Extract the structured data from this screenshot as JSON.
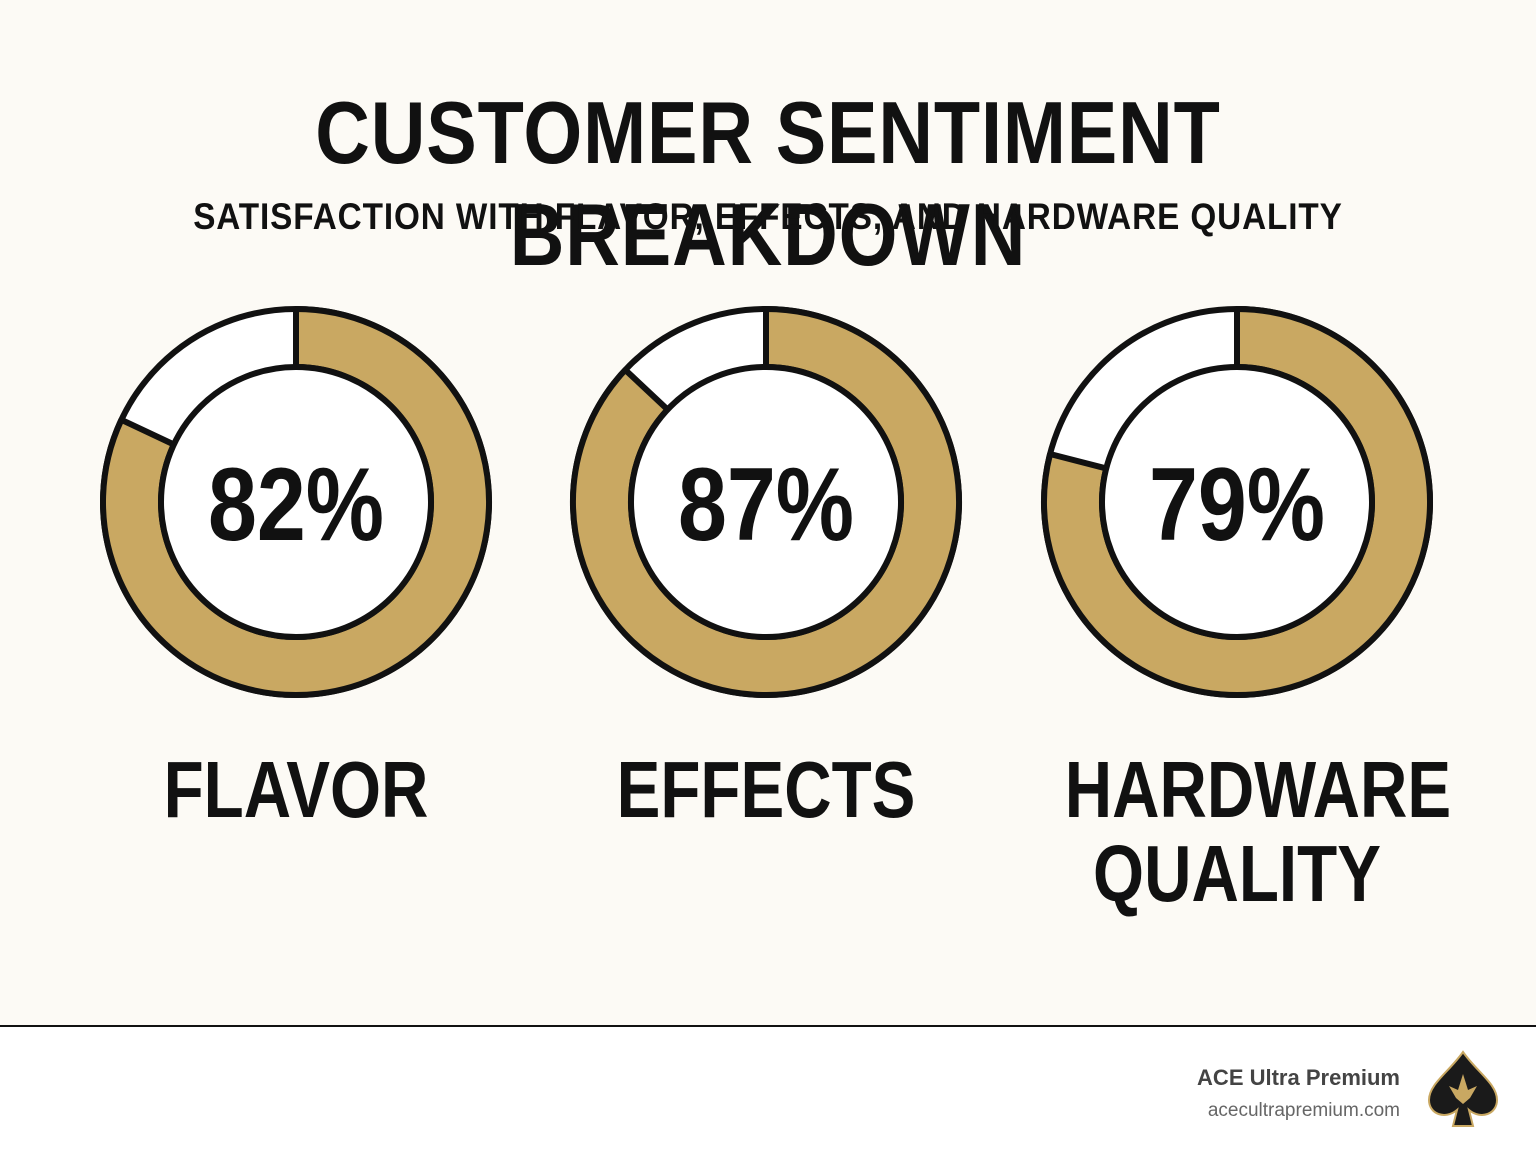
{
  "title": "CUSTOMER SENTIMENT BREAKDOWN",
  "subtitle": "SATISFACTION WITH FLAVOR, EFFECTS, AND HARDWARE QUALITY",
  "chart_data": [
    {
      "type": "donut",
      "label": "FLAVOR",
      "values": [
        82
      ],
      "value_labels": [
        "82%"
      ],
      "color": "#c9a862"
    },
    {
      "type": "donut",
      "label": "EFFECTS",
      "values": [
        87
      ],
      "value_labels": [
        "87%"
      ],
      "color": "#c9a862"
    },
    {
      "type": "donut",
      "label": "HARDWARE QUALITY",
      "values": [
        79
      ],
      "value_labels": [
        "79%"
      ],
      "color": "#c9a862"
    }
  ],
  "footer": {
    "brand": "ACE Ultra Premium",
    "url": "acecultrapremium.com"
  }
}
